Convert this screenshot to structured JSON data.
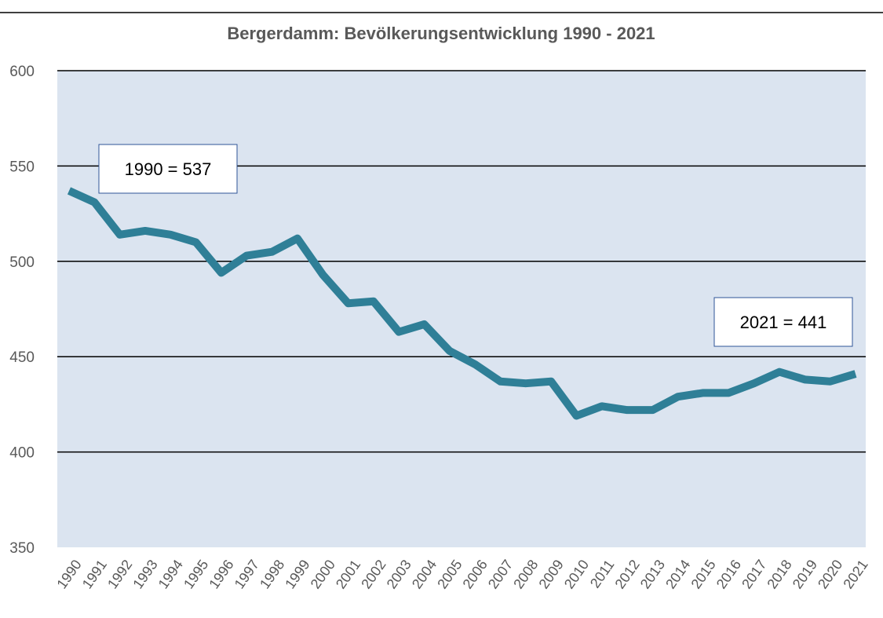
{
  "chart_data": {
    "type": "line",
    "title": "Bergerdamm: Bevölkerungsentwicklung 1990 - 2021",
    "categories": [
      "1990",
      "1991",
      "1992",
      "1993",
      "1994",
      "1995",
      "1996",
      "1997",
      "1998",
      "1999",
      "2000",
      "2001",
      "2002",
      "2003",
      "2004",
      "2005",
      "2006",
      "2007",
      "2008",
      "2009",
      "2010",
      "2011",
      "2012",
      "2013",
      "2014",
      "2015",
      "2016",
      "2017",
      "2018",
      "2019",
      "2020",
      "2021"
    ],
    "series": [
      {
        "name": "Bevölkerung",
        "color": "#2f7f97",
        "values": [
          537,
          531,
          514,
          516,
          514,
          510,
          494,
          503,
          505,
          512,
          493,
          478,
          479,
          463,
          467,
          453,
          446,
          437,
          436,
          437,
          419,
          424,
          422,
          422,
          429,
          431,
          431,
          436,
          442,
          438,
          437,
          441
        ]
      }
    ],
    "ylim": [
      350,
      600
    ],
    "yticks": [
      350,
      400,
      450,
      500,
      550,
      600
    ],
    "grid": true,
    "annotations": [
      "1990 = 537",
      "2021 = 441"
    ]
  }
}
